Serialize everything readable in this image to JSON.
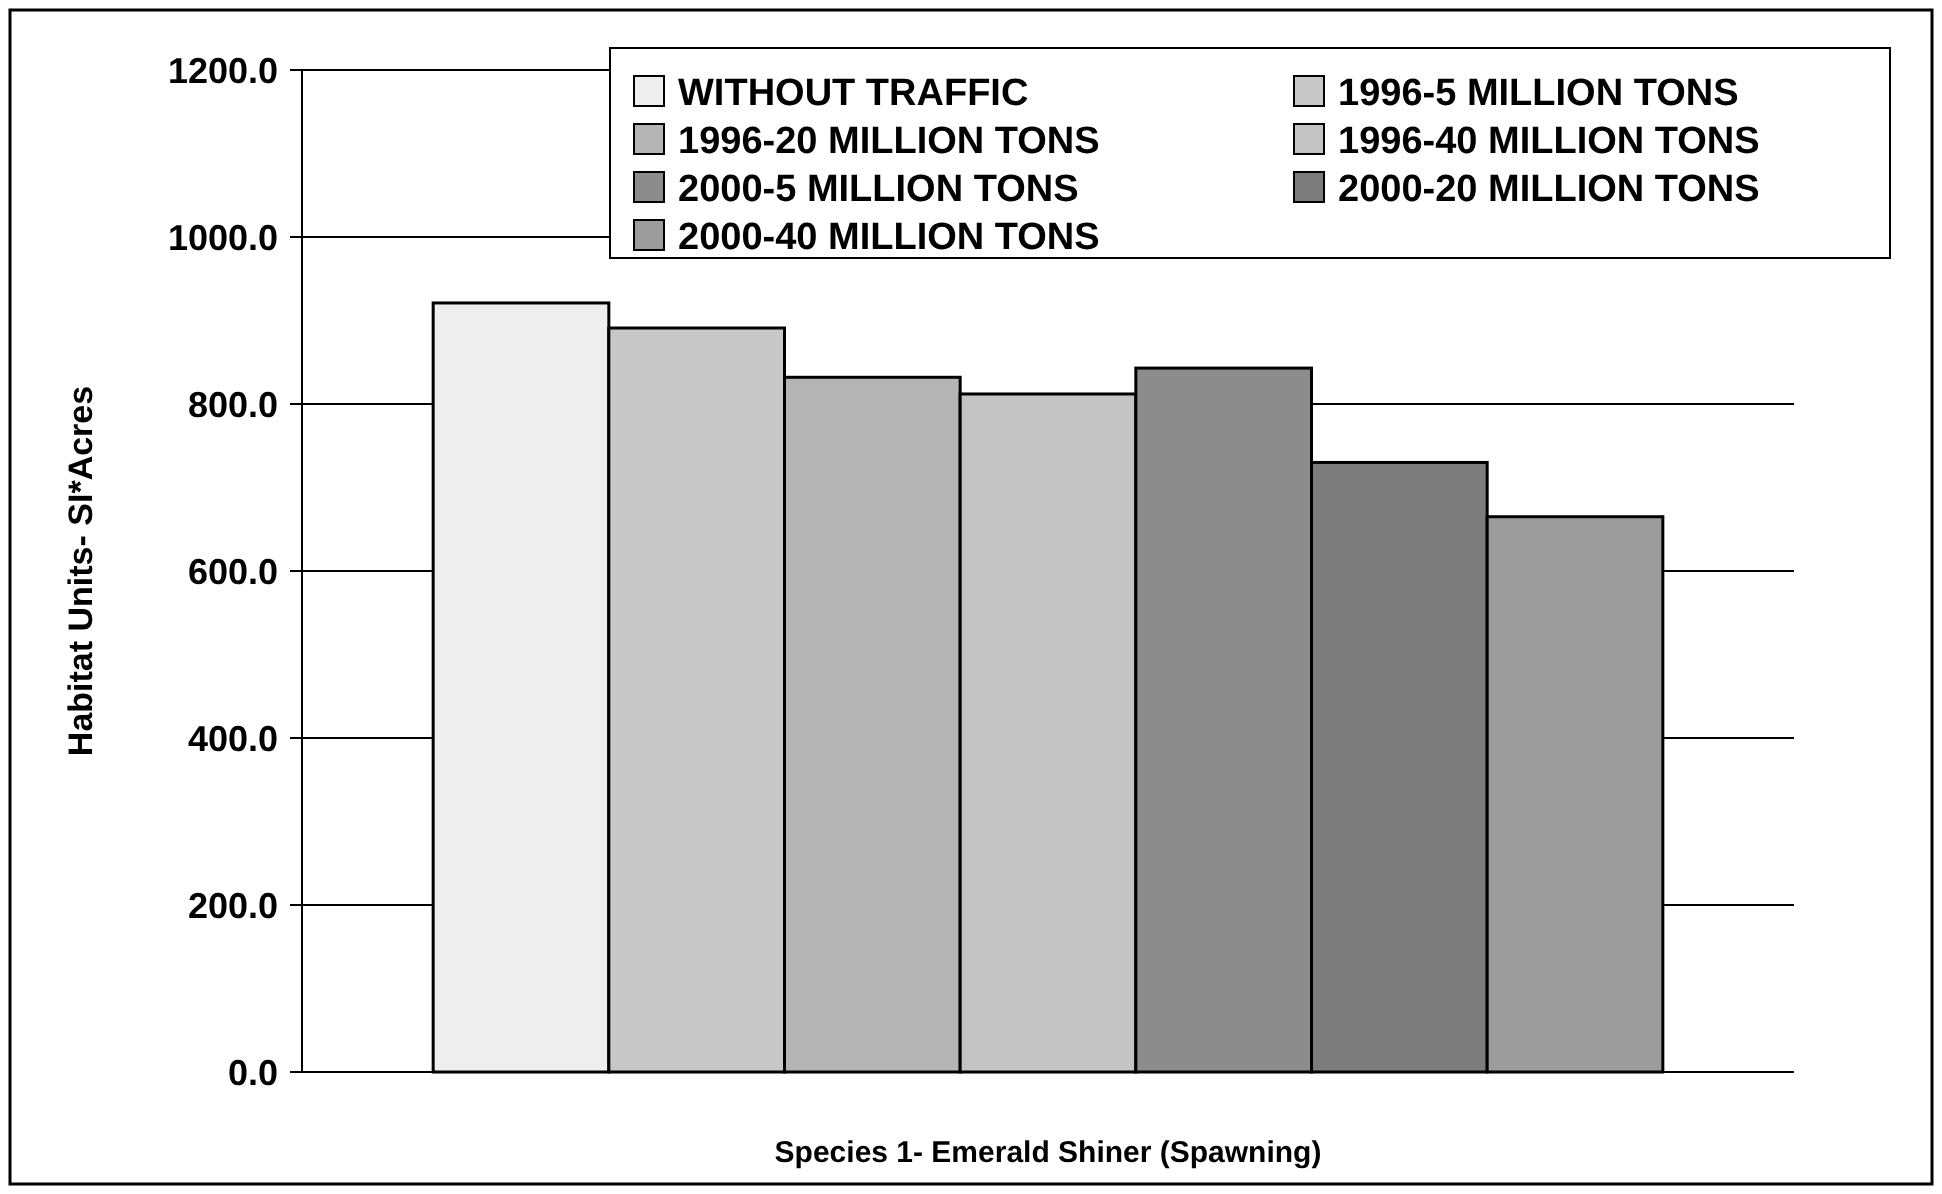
{
  "chart_data": {
    "type": "bar",
    "xlabel": "Species 1- Emerald Shiner (Spawning)",
    "ylabel": "Habitat Units- SI*Acres",
    "categories": [
      null
    ],
    "series": [
      {
        "name": "WITHOUT TRAFFIC",
        "color": "#eeeeee",
        "values": [
          921
        ]
      },
      {
        "name": "1996-5 MILLION TONS",
        "color": "#c8c8c8",
        "values": [
          891
        ]
      },
      {
        "name": "1996-20 MILLION TONS",
        "color": "#b4b4b4",
        "values": [
          832
        ]
      },
      {
        "name": "1996-40 MILLION TONS",
        "color": "#c4c4c4",
        "values": [
          812
        ]
      },
      {
        "name": "2000-5 MILLION TONS",
        "color": "#8c8c8c",
        "values": [
          843
        ]
      },
      {
        "name": "2000-20 MILLION TONS",
        "color": "#7c7c7c",
        "values": [
          730
        ]
      },
      {
        "name": "2000-40 MILLION TONS",
        "color": "#9c9c9c",
        "values": [
          665
        ]
      }
    ],
    "ylim": [
      0,
      1200
    ],
    "yticks": [
      {
        "value": 0,
        "label": "0.0"
      },
      {
        "value": 200,
        "label": "200.0"
      },
      {
        "value": 400,
        "label": "400.0"
      },
      {
        "value": 600,
        "label": "600.0"
      },
      {
        "value": 800,
        "label": "800.0"
      },
      {
        "value": 1000,
        "label": "1000.0"
      },
      {
        "value": 1200,
        "label": "1200.0"
      }
    ],
    "grid": "y",
    "legend": "top right"
  }
}
